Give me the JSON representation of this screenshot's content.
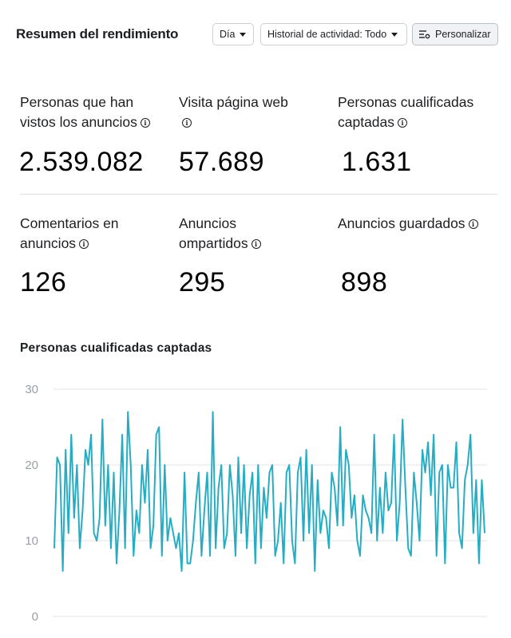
{
  "header": {
    "title": "Resumen del rendimiento",
    "day_label": "Día",
    "history_label": "Historial de actividad: Todo",
    "customize_label": "Personalizar"
  },
  "metrics": [
    {
      "label": "Personas que han vistos los anuncios",
      "value": "2.539.082"
    },
    {
      "label": "Visita página web",
      "value": "57.689"
    },
    {
      "label": "Personas cualificadas captadas",
      "value": "1.631"
    },
    {
      "label": "Comentarios en anuncios",
      "value": "126"
    },
    {
      "label": "Anuncios ompartidos",
      "value": "295"
    },
    {
      "label": "Anuncios guardados",
      "value": "898"
    }
  ],
  "icons": {
    "info": "info-icon",
    "caret": "caret-down-icon",
    "customize": "sliders-icon"
  },
  "colors": {
    "line": "#26adc3",
    "grid": "#e4e6eb",
    "tick": "#9a9ea5"
  },
  "chart_data": {
    "type": "line",
    "title": "Personas cualificadas captadas",
    "ylim": [
      0,
      30
    ],
    "yticks": [
      "0",
      "10",
      "20",
      "30"
    ],
    "grid": true,
    "series": [
      {
        "values": [
          9,
          21,
          20,
          6,
          22,
          11,
          24,
          13,
          20,
          9,
          14,
          22,
          20,
          24,
          11,
          10,
          13,
          26,
          12,
          20,
          9,
          19,
          7,
          14,
          24,
          9,
          27,
          20,
          8,
          14,
          11,
          20,
          15,
          22,
          9,
          12,
          24,
          25,
          8,
          20,
          10,
          13,
          11,
          9,
          11,
          6,
          19,
          7,
          7,
          10,
          15,
          19,
          8,
          14,
          19,
          8,
          27,
          9,
          17,
          20,
          9,
          11,
          20,
          16,
          8,
          21,
          11,
          20,
          9,
          16,
          19,
          7,
          20,
          9,
          17,
          13,
          19,
          20,
          8,
          10,
          15,
          7,
          19,
          20,
          10,
          7,
          19,
          21,
          10,
          22,
          11,
          20,
          6,
          18,
          11,
          14,
          13,
          9,
          19,
          17,
          12,
          25,
          12,
          22,
          20,
          13,
          16,
          10,
          8,
          16,
          14,
          13,
          11,
          24,
          10,
          17,
          11,
          19,
          14,
          15,
          24,
          10,
          15,
          26,
          17,
          9,
          8,
          19,
          15,
          10,
          22,
          19,
          23,
          16,
          24,
          8,
          19,
          20,
          7,
          20,
          17,
          17,
          23,
          11,
          9,
          18,
          20,
          24,
          11,
          18,
          7,
          18,
          11
        ],
        "values_note": "daily values, approximate"
      }
    ]
  }
}
